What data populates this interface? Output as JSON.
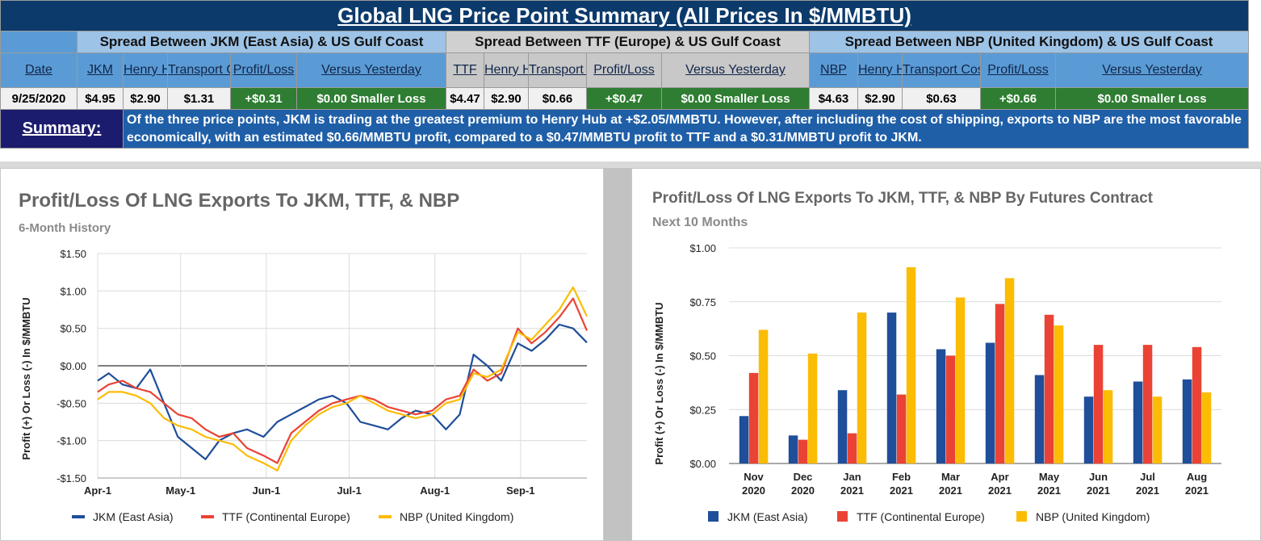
{
  "table": {
    "title": "Global LNG Price Point Summary (All Prices In $/MMBTU)",
    "groups": [
      "Spread Between JKM (East Asia) & US Gulf Coast",
      "Spread Between TTF (Europe) & US Gulf Coast",
      "Spread Between NBP (United Kingdom) & US Gulf Coast"
    ],
    "headers": {
      "date": "Date",
      "jkm": "JKM",
      "hh1": "Henry Hub",
      "tc1": "Transport Cost",
      "pl1": "Profit/Loss",
      "vy1": "Versus Yesterday",
      "ttf": "TTF",
      "hh2": "Henry Hub",
      "tc2": "Transport Cost",
      "pl2": "Profit/Loss",
      "vy2": "Versus Yesterday",
      "nbp": "NBP",
      "hh3": "Henry Hub",
      "tc3": "Transport Cost",
      "pl3": "Profit/Loss",
      "vy3": "Versus Yesterday"
    },
    "values": {
      "date": "9/25/2020",
      "jkm": "$4.95",
      "hh1": "$2.90",
      "tc1": "$1.31",
      "pl1": "+$0.31",
      "vy1": "$0.00 Smaller Loss",
      "ttf": "$4.47",
      "hh2": "$2.90",
      "tc2": "$0.66",
      "pl2": "+$0.47",
      "vy2": "$0.00 Smaller Loss",
      "nbp": "$4.63",
      "hh3": "$2.90",
      "tc3": "$0.63",
      "pl3": "+$0.66",
      "vy3": "$0.00 Smaller Loss"
    },
    "summary_label": "Summary:",
    "summary_text": "Of the three price points, JKM is trading at the greatest premium to Henry Hub at +$2.05/MMBTU. However, after including the cost of shipping, exports to NBP are the most favorable economically, with an estimated $0.66/MMBTU profit, compared to a $0.47/MMBTU profit to TTF and a $0.31/MMBTU profit to JKM."
  },
  "chart_data": [
    {
      "type": "line",
      "title": "Profit/Loss Of LNG Exports To JKM, TTF, & NBP",
      "subtitle": "6-Month History",
      "xlabel": "",
      "ylabel": "Profit (+) Or Loss (-) In $/MMBTU",
      "x_ticks": [
        "Apr-1",
        "May-1",
        "Jun-1",
        "Jul-1",
        "Aug-1",
        "Sep-1"
      ],
      "x_range": [
        "2020-04-01",
        "2020-09-25"
      ],
      "ylim": [
        -1.5,
        1.5
      ],
      "y_ticks": [
        "$1.50",
        "$1.00",
        "$0.50",
        "$0.00",
        "-$0.50",
        "-$1.00",
        "-$1.50"
      ],
      "grid": true,
      "legend": "bottom",
      "colors": {
        "JKM (East Asia)": "#1f4e9a",
        "TTF (Continental Europe)": "#ea4335",
        "NBP (United Kingdom)": "#fbbc04"
      },
      "series": [
        {
          "name": "JKM (East Asia)",
          "x": [
            "2020-04-01",
            "2020-04-05",
            "2020-04-10",
            "2020-04-15",
            "2020-04-20",
            "2020-04-25",
            "2020-04-30",
            "2020-05-05",
            "2020-05-10",
            "2020-05-15",
            "2020-05-20",
            "2020-05-25",
            "2020-05-31",
            "2020-06-05",
            "2020-06-10",
            "2020-06-15",
            "2020-06-20",
            "2020-06-25",
            "2020-06-30",
            "2020-07-05",
            "2020-07-10",
            "2020-07-15",
            "2020-07-20",
            "2020-07-25",
            "2020-07-31",
            "2020-08-05",
            "2020-08-10",
            "2020-08-15",
            "2020-08-20",
            "2020-08-25",
            "2020-08-31",
            "2020-09-05",
            "2020-09-10",
            "2020-09-15",
            "2020-09-20",
            "2020-09-25"
          ],
          "y": [
            -0.2,
            -0.1,
            -0.25,
            -0.3,
            -0.05,
            -0.5,
            -0.95,
            -1.1,
            -1.25,
            -1.0,
            -0.9,
            -0.85,
            -0.95,
            -0.75,
            -0.65,
            -0.55,
            -0.45,
            -0.4,
            -0.5,
            -0.75,
            -0.8,
            -0.85,
            -0.7,
            -0.6,
            -0.65,
            -0.85,
            -0.65,
            0.15,
            0.0,
            -0.2,
            0.3,
            0.2,
            0.35,
            0.55,
            0.5,
            0.31
          ]
        },
        {
          "name": "TTF (Continental Europe)",
          "x": [
            "2020-04-01",
            "2020-04-05",
            "2020-04-10",
            "2020-04-15",
            "2020-04-20",
            "2020-04-25",
            "2020-04-30",
            "2020-05-05",
            "2020-05-10",
            "2020-05-15",
            "2020-05-20",
            "2020-05-25",
            "2020-05-31",
            "2020-06-05",
            "2020-06-10",
            "2020-06-15",
            "2020-06-20",
            "2020-06-25",
            "2020-06-30",
            "2020-07-05",
            "2020-07-10",
            "2020-07-15",
            "2020-07-20",
            "2020-07-25",
            "2020-07-31",
            "2020-08-05",
            "2020-08-10",
            "2020-08-15",
            "2020-08-20",
            "2020-08-25",
            "2020-08-31",
            "2020-09-05",
            "2020-09-10",
            "2020-09-15",
            "2020-09-20",
            "2020-09-25"
          ],
          "y": [
            -0.35,
            -0.25,
            -0.2,
            -0.3,
            -0.35,
            -0.5,
            -0.65,
            -0.7,
            -0.85,
            -0.95,
            -0.9,
            -1.1,
            -1.2,
            -1.3,
            -0.9,
            -0.75,
            -0.6,
            -0.5,
            -0.45,
            -0.4,
            -0.45,
            -0.55,
            -0.6,
            -0.65,
            -0.6,
            -0.45,
            -0.4,
            -0.05,
            -0.2,
            -0.1,
            0.5,
            0.3,
            0.45,
            0.65,
            0.9,
            0.47
          ]
        },
        {
          "name": "NBP (United Kingdom)",
          "x": [
            "2020-04-01",
            "2020-04-05",
            "2020-04-10",
            "2020-04-15",
            "2020-04-20",
            "2020-04-25",
            "2020-04-30",
            "2020-05-05",
            "2020-05-10",
            "2020-05-15",
            "2020-05-20",
            "2020-05-25",
            "2020-05-31",
            "2020-06-05",
            "2020-06-10",
            "2020-06-15",
            "2020-06-20",
            "2020-06-25",
            "2020-06-30",
            "2020-07-05",
            "2020-07-10",
            "2020-07-15",
            "2020-07-20",
            "2020-07-25",
            "2020-07-31",
            "2020-08-05",
            "2020-08-10",
            "2020-08-15",
            "2020-08-20",
            "2020-08-25",
            "2020-08-31",
            "2020-09-05",
            "2020-09-10",
            "2020-09-15",
            "2020-09-20",
            "2020-09-25"
          ],
          "y": [
            -0.45,
            -0.35,
            -0.35,
            -0.4,
            -0.5,
            -0.7,
            -0.8,
            -0.85,
            -0.95,
            -1.0,
            -1.05,
            -1.2,
            -1.3,
            -1.4,
            -1.0,
            -0.8,
            -0.65,
            -0.55,
            -0.5,
            -0.4,
            -0.5,
            -0.6,
            -0.65,
            -0.7,
            -0.65,
            -0.5,
            -0.45,
            -0.1,
            -0.15,
            -0.05,
            0.45,
            0.35,
            0.55,
            0.75,
            1.05,
            0.66
          ]
        }
      ]
    },
    {
      "type": "bar",
      "title": "Profit/Loss Of LNG Exports To JKM, TTF, & NBP By Futures Contract",
      "subtitle": "Next 10 Months",
      "xlabel": "",
      "ylabel": "Profit (+) Or Loss (-) In $/MMBTU",
      "categories": [
        "Nov 2020",
        "Dec 2020",
        "Jan 2021",
        "Feb 2021",
        "Mar 2021",
        "Apr 2021",
        "May 2021",
        "Jun 2021",
        "Jul 2021",
        "Aug 2021"
      ],
      "ylim": [
        0,
        1.0
      ],
      "y_ticks": [
        "$1.00",
        "$0.75",
        "$0.50",
        "$0.25",
        "$0.00"
      ],
      "grid": true,
      "legend": "bottom",
      "colors": {
        "JKM (East Asia)": "#1f4e9a",
        "TTF (Continental Europe)": "#ea4335",
        "NBP (United Kingdom)": "#fbbc04"
      },
      "series": [
        {
          "name": "JKM (East Asia)",
          "values": [
            0.22,
            0.13,
            0.34,
            0.7,
            0.53,
            0.56,
            0.41,
            0.31,
            0.38,
            0.39
          ]
        },
        {
          "name": "TTF (Continental Europe)",
          "values": [
            0.42,
            0.11,
            0.14,
            0.32,
            0.5,
            0.74,
            0.69,
            0.55,
            0.55,
            0.54
          ]
        },
        {
          "name": "NBP (United Kingdom)",
          "values": [
            0.62,
            0.51,
            0.7,
            0.91,
            0.77,
            0.86,
            0.64,
            0.34,
            0.31,
            0.33
          ]
        }
      ]
    }
  ]
}
